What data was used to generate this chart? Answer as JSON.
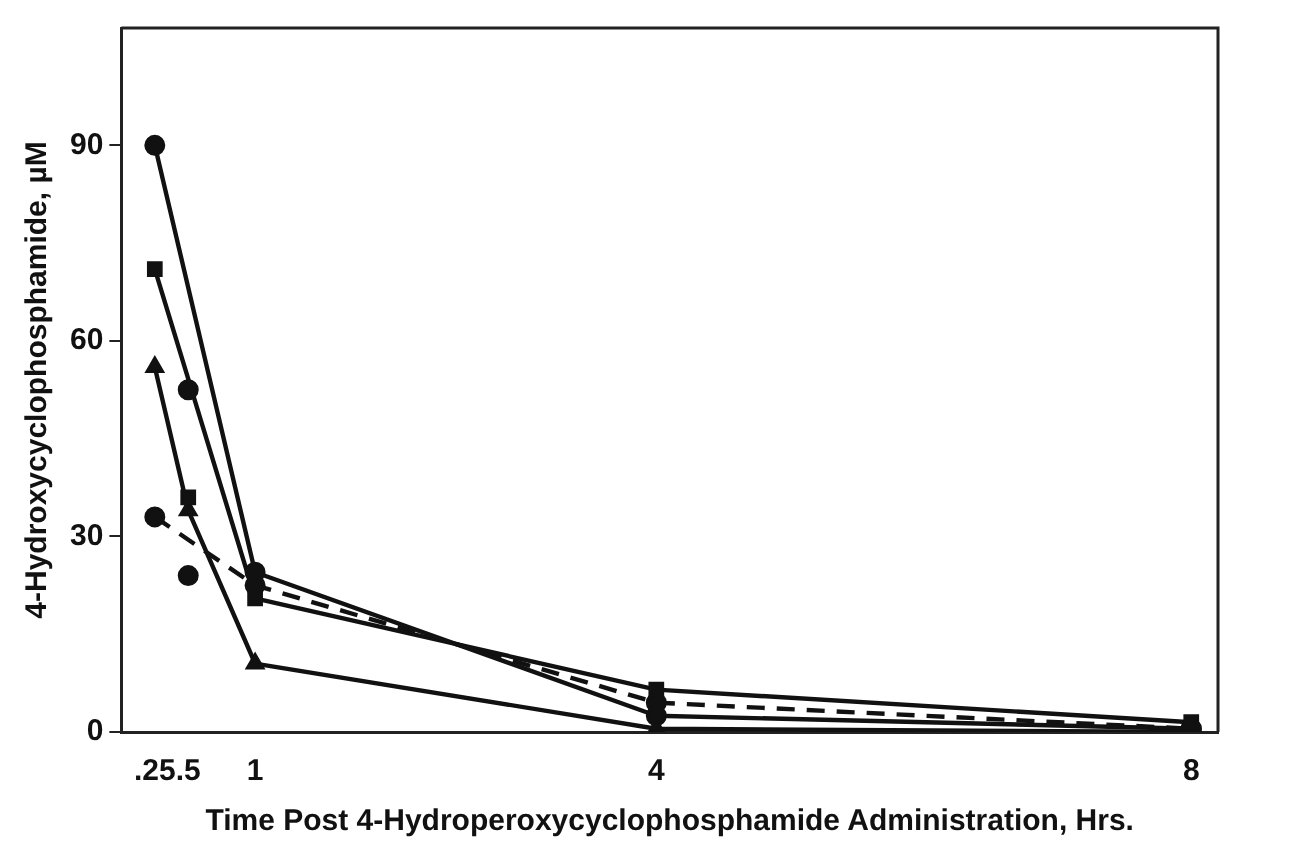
{
  "chart_data": {
    "type": "line",
    "xlabel": "Time Post 4-Hydroperoxycyclophosphamide Administration, Hrs.",
    "ylabel": "4-Hydroxycyclophosphamide, µM",
    "xlim": [
      0,
      8.2
    ],
    "xticks": [
      {
        "value": 0.25,
        "label": ".25"
      },
      {
        "value": 0.5,
        "label": ".5"
      },
      1,
      4,
      8
    ],
    "ylim": [
      0,
      108
    ],
    "yticks": [
      0,
      30,
      60,
      90
    ],
    "grid": false,
    "legend": false,
    "series": [
      {
        "color": "#111111",
        "marker": "circle",
        "line_style": "solid",
        "x": [
          0.25,
          1,
          4,
          8
        ],
        "values": [
          90,
          24.5,
          2.5,
          0.5
        ]
      },
      {
        "color": "#111111",
        "marker": "square",
        "line_style": "solid",
        "x": [
          0.25,
          1,
          4,
          8
        ],
        "values": [
          71,
          20.5,
          6.5,
          1.5
        ]
      },
      {
        "color": "#111111",
        "marker": "triangle",
        "line_style": "solid",
        "x": [
          0.25,
          0.5,
          1,
          4,
          8
        ],
        "values": [
          56,
          34,
          10.5,
          0.5,
          0
        ]
      },
      {
        "color": "#111111",
        "marker": "circle",
        "line_style": "dashed",
        "x": [
          0.25,
          1,
          4,
          8
        ],
        "values": [
          33,
          22.5,
          4.5,
          0.5
        ]
      },
      {
        "type": "scatter",
        "color": "#111111",
        "marker": "circle",
        "x": [
          0.5
        ],
        "values": [
          52.5
        ]
      },
      {
        "type": "scatter",
        "color": "#111111",
        "marker": "square",
        "x": [
          0.5
        ],
        "values": [
          36
        ]
      },
      {
        "type": "scatter",
        "color": "#111111",
        "marker": "circle",
        "x": [
          0.5
        ],
        "values": [
          24
        ]
      }
    ]
  }
}
